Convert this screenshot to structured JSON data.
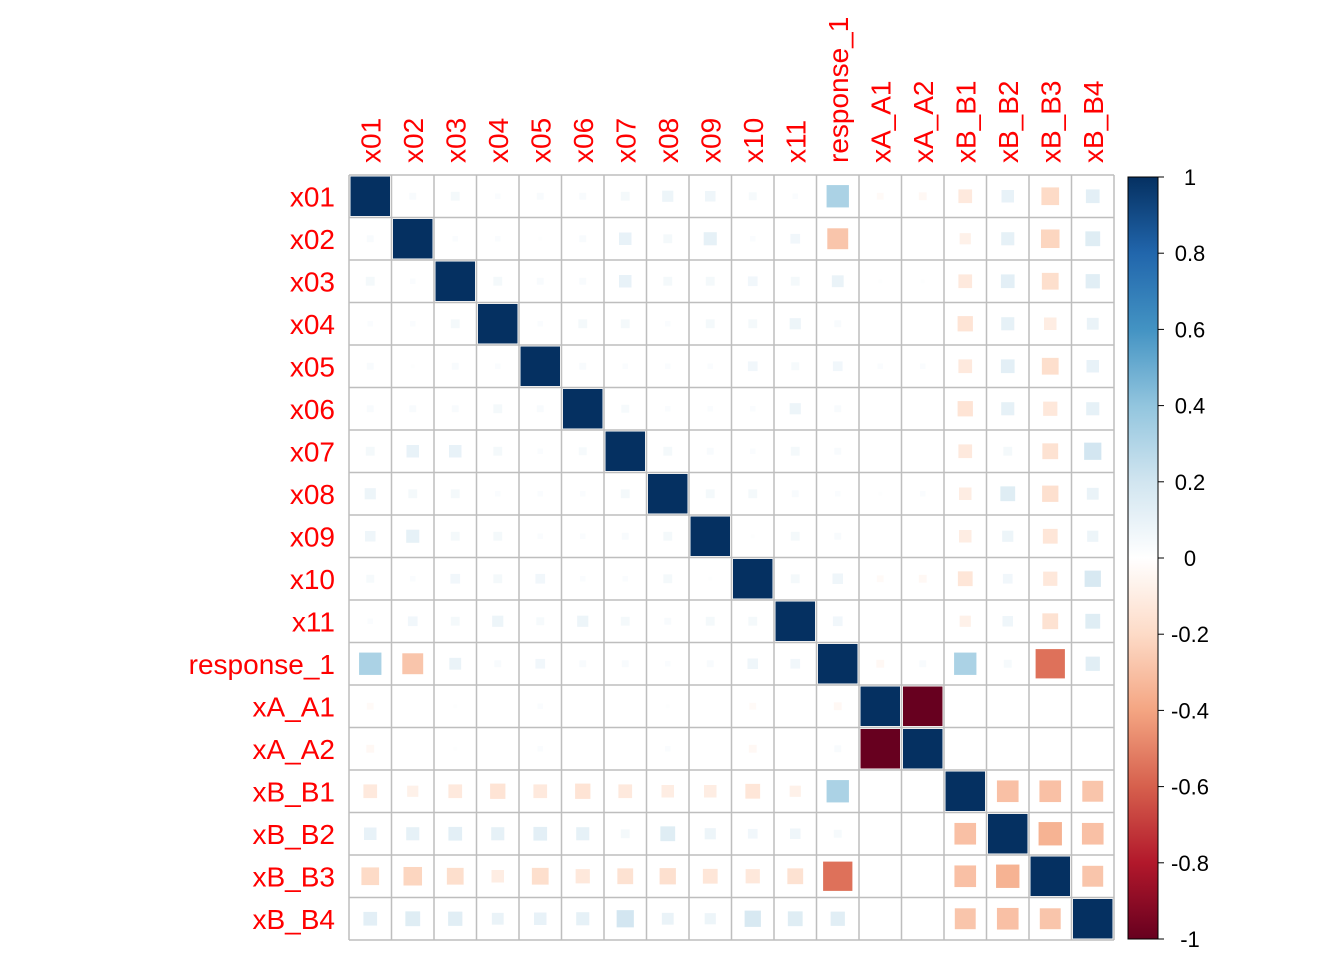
{
  "chart_data": {
    "type": "heatmap",
    "title": "",
    "method": "square",
    "label_color": "#FF0000",
    "grid_color": "#BEBEBE",
    "labels": [
      "x01",
      "x02",
      "x03",
      "x04",
      "x05",
      "x06",
      "x07",
      "x08",
      "x09",
      "x10",
      "x11",
      "response_1",
      "xA_A1",
      "xA_A2",
      "xB_B1",
      "xB_B2",
      "xB_B3",
      "xB_B4"
    ],
    "matrix": [
      [
        1.0,
        0.03,
        0.05,
        0.02,
        0.03,
        0.03,
        0.05,
        0.08,
        0.07,
        0.04,
        0.02,
        0.32,
        -0.03,
        -0.04,
        -0.12,
        0.1,
        -0.2,
        0.12
      ],
      [
        0.03,
        1.0,
        0.02,
        0.02,
        0.01,
        0.03,
        0.1,
        0.05,
        0.11,
        0.02,
        0.06,
        -0.28,
        0.0,
        0.0,
        -0.08,
        0.11,
        -0.22,
        0.14
      ],
      [
        0.05,
        0.02,
        1.0,
        0.05,
        0.03,
        0.03,
        0.1,
        0.05,
        0.05,
        0.06,
        0.05,
        0.09,
        0.01,
        0.01,
        -0.12,
        0.12,
        -0.18,
        0.13
      ],
      [
        0.02,
        0.02,
        0.05,
        1.0,
        0.02,
        0.05,
        0.05,
        0.02,
        0.05,
        0.05,
        0.08,
        0.03,
        0.0,
        0.0,
        -0.15,
        0.11,
        -0.1,
        0.09
      ],
      [
        0.03,
        0.01,
        0.03,
        0.02,
        1.0,
        0.03,
        0.02,
        0.02,
        0.02,
        0.06,
        0.04,
        0.06,
        0.02,
        0.02,
        -0.12,
        0.12,
        -0.18,
        0.1
      ],
      [
        0.03,
        0.03,
        0.03,
        0.05,
        0.03,
        1.0,
        0.04,
        0.02,
        0.02,
        0.02,
        0.08,
        0.03,
        0.0,
        0.0,
        -0.15,
        0.11,
        -0.13,
        0.11
      ],
      [
        0.05,
        0.1,
        0.1,
        0.05,
        0.02,
        0.04,
        1.0,
        0.05,
        0.03,
        0.02,
        0.05,
        0.03,
        0.0,
        0.0,
        -0.12,
        0.05,
        -0.16,
        0.19
      ],
      [
        0.08,
        0.05,
        0.05,
        0.02,
        0.02,
        0.02,
        0.05,
        1.0,
        0.05,
        0.05,
        0.03,
        0.02,
        0.01,
        0.02,
        -0.1,
        0.14,
        -0.17,
        0.09
      ],
      [
        0.07,
        0.11,
        0.05,
        0.05,
        0.02,
        0.02,
        0.03,
        0.05,
        1.0,
        0.01,
        0.05,
        0.03,
        0.0,
        0.0,
        -0.1,
        0.08,
        -0.14,
        0.08
      ],
      [
        0.04,
        0.02,
        0.06,
        0.05,
        0.06,
        0.02,
        0.02,
        0.05,
        0.01,
        1.0,
        0.05,
        0.07,
        -0.03,
        -0.04,
        -0.14,
        0.06,
        -0.13,
        0.17
      ],
      [
        0.02,
        0.06,
        0.05,
        0.08,
        0.04,
        0.08,
        0.05,
        0.03,
        0.05,
        0.05,
        1.0,
        0.06,
        0.0,
        0.0,
        -0.08,
        0.07,
        -0.16,
        0.14
      ],
      [
        0.32,
        -0.28,
        0.09,
        0.03,
        0.06,
        0.03,
        0.03,
        0.02,
        0.03,
        0.07,
        0.06,
        1.0,
        -0.04,
        0.03,
        0.32,
        0.04,
        -0.55,
        0.13
      ],
      [
        -0.03,
        0.0,
        0.01,
        0.0,
        0.02,
        0.0,
        0.0,
        0.01,
        0.0,
        -0.03,
        0.0,
        -0.04,
        1.0,
        -1.0,
        0.0,
        0.0,
        0.0,
        0.0
      ],
      [
        -0.04,
        0.0,
        0.01,
        0.0,
        0.02,
        0.0,
        0.0,
        0.02,
        0.0,
        -0.04,
        0.0,
        0.03,
        -1.0,
        1.0,
        0.0,
        0.0,
        0.0,
        0.0
      ],
      [
        -0.12,
        -0.08,
        -0.12,
        -0.15,
        -0.12,
        -0.15,
        -0.12,
        -0.1,
        -0.1,
        -0.14,
        -0.08,
        0.32,
        0.0,
        0.0,
        1.0,
        -0.3,
        -0.3,
        -0.28
      ],
      [
        0.1,
        0.11,
        0.12,
        0.11,
        0.12,
        0.11,
        0.05,
        0.14,
        0.08,
        0.06,
        0.07,
        0.04,
        0.0,
        0.0,
        -0.3,
        1.0,
        -0.35,
        -0.3
      ],
      [
        -0.2,
        -0.22,
        -0.18,
        -0.1,
        -0.18,
        -0.13,
        -0.16,
        -0.17,
        -0.14,
        -0.13,
        -0.16,
        -0.55,
        0.0,
        0.0,
        -0.3,
        -0.35,
        1.0,
        -0.28
      ],
      [
        0.12,
        0.14,
        0.13,
        0.09,
        0.1,
        0.11,
        0.19,
        0.09,
        0.08,
        0.17,
        0.14,
        0.13,
        0.0,
        0.0,
        -0.28,
        -0.3,
        -0.28,
        1.0
      ]
    ],
    "color_scale": {
      "domain": [
        -1,
        1
      ],
      "ticks": [
        "1",
        "0.8",
        "0.6",
        "0.4",
        "0.2",
        "0",
        "-0.2",
        "-0.4",
        "-0.6",
        "-0.8",
        "-1"
      ],
      "tick_values": [
        1,
        0.8,
        0.6,
        0.4,
        0.2,
        0,
        -0.2,
        -0.4,
        -0.6,
        -0.8,
        -1
      ],
      "stops": [
        "#67001F",
        "#B2182B",
        "#D6604D",
        "#F4A582",
        "#FDDBC7",
        "#FFFFFF",
        "#D1E5F0",
        "#92C5DE",
        "#4393C3",
        "#2166AC",
        "#053061"
      ]
    }
  }
}
